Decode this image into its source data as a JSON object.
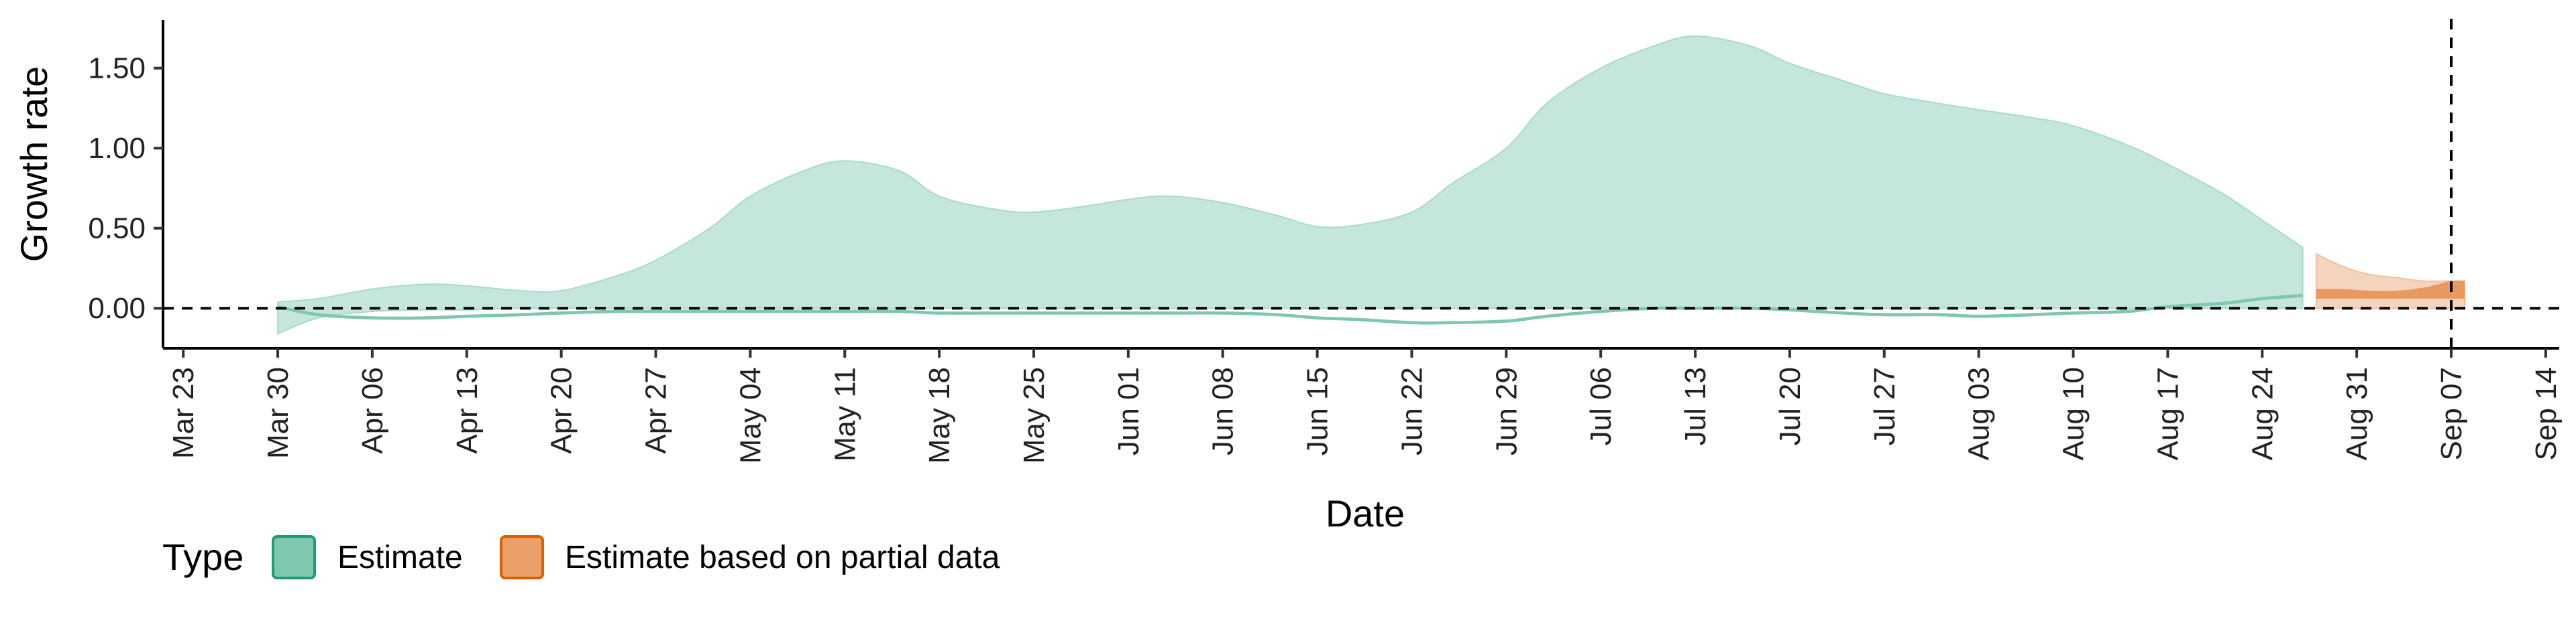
{
  "chart_data": {
    "type": "area",
    "xlabel": "Date",
    "ylabel": "Growth rate",
    "x_ticks": [
      "Mar 23",
      "Mar 30",
      "Apr 06",
      "Apr 13",
      "Apr 20",
      "Apr 27",
      "May 04",
      "May 11",
      "May 18",
      "May 25",
      "Jun 01",
      "Jun 08",
      "Jun 15",
      "Jun 22",
      "Jun 29",
      "Jul 06",
      "Jul 13",
      "Jul 20",
      "Jul 27",
      "Aug 03",
      "Aug 10",
      "Aug 17",
      "Aug 24",
      "Aug 31",
      "Sep 07",
      "Sep 14"
    ],
    "y_ticks": [
      "0.00",
      "0.50",
      "1.00",
      "1.50"
    ],
    "ylim": [
      -0.25,
      1.8
    ],
    "xlim_days_from_first_tick": [
      -1.5,
      176
    ],
    "reference_lines": {
      "horizontal_y": 0,
      "vertical_date": "Sep 07"
    },
    "legend": {
      "title": "Type",
      "position": "bottom-left",
      "entries": [
        {
          "label": "Estimate",
          "fill": "#7fc8ad",
          "stroke": "#1b9e77"
        },
        {
          "label": "Estimate based on partial data",
          "fill": "#eba06a",
          "stroke": "#d95f02"
        }
      ]
    },
    "series": [
      {
        "type": "Estimate",
        "color": "#1b9e77",
        "dates": [
          "Mar 30",
          "Apr 02",
          "Apr 06",
          "Apr 10",
          "Apr 13",
          "Apr 17",
          "Apr 20",
          "Apr 24",
          "Apr 27",
          "May 01",
          "May 04",
          "May 08",
          "May 11",
          "May 15",
          "May 18",
          "May 22",
          "May 25",
          "May 29",
          "Jun 01",
          "Jun 04",
          "Jun 08",
          "Jun 12",
          "Jun 15",
          "Jun 18",
          "Jun 22",
          "Jun 25",
          "Jun 29",
          "Jul 02",
          "Jul 06",
          "Jul 10",
          "Jul 13",
          "Jul 17",
          "Jul 20",
          "Jul 24",
          "Jul 27",
          "Jul 31",
          "Aug 03",
          "Aug 07",
          "Aug 10",
          "Aug 14",
          "Aug 17",
          "Aug 21",
          "Aug 24",
          "Aug 27"
        ],
        "upper": [
          0.04,
          0.06,
          0.12,
          0.15,
          0.14,
          0.11,
          0.11,
          0.2,
          0.3,
          0.5,
          0.7,
          0.86,
          0.92,
          0.86,
          0.7,
          0.62,
          0.6,
          0.64,
          0.68,
          0.7,
          0.66,
          0.58,
          0.51,
          0.52,
          0.6,
          0.78,
          1.0,
          1.28,
          1.5,
          1.64,
          1.7,
          1.64,
          1.53,
          1.42,
          1.34,
          1.28,
          1.24,
          1.19,
          1.14,
          1.02,
          0.9,
          0.72,
          0.55,
          0.38
        ],
        "lower": [
          -0.16,
          -0.06,
          -0.02,
          -0.01,
          -0.01,
          0.0,
          0.0,
          0.0,
          0.0,
          0.0,
          0.0,
          0.0,
          0.0,
          0.0,
          0.0,
          0.0,
          0.0,
          0.0,
          0.0,
          0.0,
          0.0,
          0.0,
          0.0,
          0.0,
          0.0,
          0.0,
          0.0,
          0.0,
          0.0,
          0.0,
          0.0,
          0.0,
          0.0,
          0.0,
          0.0,
          0.0,
          0.0,
          0.0,
          0.0,
          0.0,
          0.0,
          0.0,
          0.0,
          0.0
        ],
        "inner_upper": [
          0.02,
          -0.03,
          -0.05,
          -0.05,
          -0.04,
          -0.03,
          -0.02,
          -0.01,
          -0.01,
          -0.01,
          -0.01,
          -0.01,
          -0.01,
          -0.01,
          -0.02,
          -0.02,
          -0.02,
          -0.02,
          -0.02,
          -0.02,
          -0.02,
          -0.03,
          -0.05,
          -0.06,
          -0.08,
          -0.08,
          -0.07,
          -0.04,
          -0.01,
          0.01,
          0.01,
          0.01,
          0.0,
          -0.02,
          -0.03,
          -0.03,
          -0.04,
          -0.03,
          -0.02,
          -0.01,
          0.02,
          0.04,
          0.07,
          0.09
        ],
        "inner_lower": [
          0.0,
          -0.05,
          -0.07,
          -0.07,
          -0.06,
          -0.05,
          -0.04,
          -0.03,
          -0.03,
          -0.03,
          -0.03,
          -0.03,
          -0.03,
          -0.03,
          -0.04,
          -0.04,
          -0.04,
          -0.04,
          -0.04,
          -0.04,
          -0.04,
          -0.05,
          -0.07,
          -0.08,
          -0.1,
          -0.1,
          -0.09,
          -0.06,
          -0.03,
          -0.01,
          -0.01,
          -0.01,
          -0.02,
          -0.04,
          -0.05,
          -0.05,
          -0.06,
          -0.05,
          -0.04,
          -0.03,
          0.0,
          0.02,
          0.05,
          0.07
        ]
      },
      {
        "type": "Estimate based on partial data",
        "color": "#d95f02",
        "dates": [
          "Aug 28",
          "Aug 30",
          "Sep 01",
          "Sep 03",
          "Sep 05",
          "Sep 07",
          "Sep 08"
        ],
        "upper": [
          0.34,
          0.26,
          0.21,
          0.19,
          0.17,
          0.17,
          0.17
        ],
        "lower": [
          0.0,
          0.0,
          0.0,
          0.0,
          0.0,
          0.0,
          0.0
        ],
        "inner_upper": [
          0.12,
          0.12,
          0.11,
          0.11,
          0.13,
          0.17,
          0.17
        ],
        "inner_lower": [
          0.06,
          0.06,
          0.06,
          0.06,
          0.06,
          0.06,
          0.06
        ]
      }
    ]
  }
}
